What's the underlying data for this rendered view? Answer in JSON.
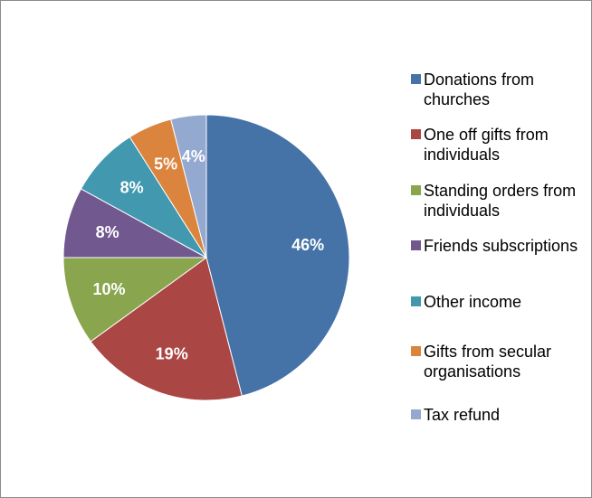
{
  "chart_data": {
    "type": "pie",
    "slices": [
      {
        "label": "Donations from churches",
        "value": 46,
        "value_label": "46%",
        "color": "#4572A7"
      },
      {
        "label": "One off gifts from individuals",
        "value": 19,
        "value_label": "19%",
        "color": "#AA4643"
      },
      {
        "label": "Standing orders from individuals",
        "value": 10,
        "value_label": "10%",
        "color": "#89A54E"
      },
      {
        "label": "Friends subscriptions",
        "value": 8,
        "value_label": "8%",
        "color": "#71588F"
      },
      {
        "label": "Other income",
        "value": 8,
        "value_label": "8%",
        "color": "#4198AF"
      },
      {
        "label": "Gifts from secular organisations",
        "value": 5,
        "value_label": "5%",
        "color": "#DB843D"
      },
      {
        "label": "Tax refund",
        "value": 4,
        "value_label": "4%",
        "color": "#93A9CF"
      }
    ],
    "start_angle": "12 o'clock",
    "direction": "clockwise",
    "legend_position": "right"
  }
}
